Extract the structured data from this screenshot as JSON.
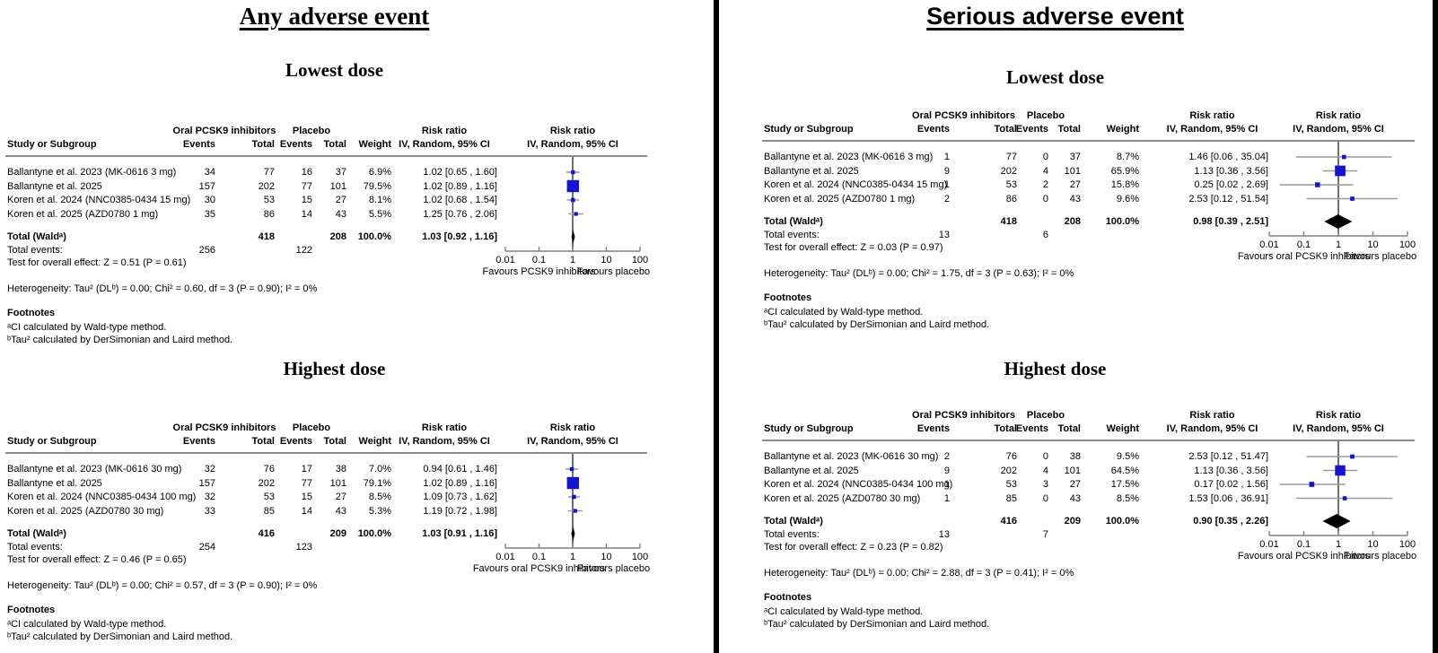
{
  "figures": {
    "left": {
      "title": "Any adverse event"
    },
    "right": {
      "title": "Serious adverse event"
    }
  },
  "headers": {
    "study": "Study or Subgroup",
    "group_treatment": "Oral PCSK9 inhibitors",
    "group_placebo": "Placebo",
    "events": "Events",
    "total": "Total",
    "weight": "Weight",
    "risk_ratio": "Risk ratio",
    "method": "IV, Random, 95% CI"
  },
  "footnotes": {
    "title": "Footnotes",
    "a": "ᵃCI calculated by Wald-type method.",
    "b": "ᵇTau² calculated by DerSimonian and Laird method."
  },
  "colors": {
    "marker_square": "#1414cc",
    "diamond": "#000000",
    "ci_line": "#9a9a9a",
    "axis": "#808080",
    "vline": "#333333",
    "rule": "#8c8c8c",
    "divider": "#000000"
  },
  "chart_data": [
    {
      "type": "scatter",
      "subtype": "forest_plot",
      "figure": "Any adverse event",
      "title": "Lowest dose",
      "x_scale": "log",
      "xlim": [
        0.01,
        100
      ],
      "x_ticks": [
        0.01,
        0.1,
        1,
        10,
        100
      ],
      "favours_left": "Favours PCSK9 inhibitors",
      "favours_right": "Favours placebo",
      "rows": [
        {
          "study": "Ballantyne et al. 2023 (MK-0616 3 mg)",
          "pcsk9_events": "34",
          "pcsk9_total": "77",
          "placebo_events": "16",
          "placebo_total": "37",
          "weight": "6.9%",
          "weight_pct": 6.9,
          "ci_text": "1.02 [0.65 , 1.60]",
          "rr": 1.02,
          "ci_low": 0.65,
          "ci_high": 1.6
        },
        {
          "study": "Ballantyne et al. 2025",
          "pcsk9_events": "157",
          "pcsk9_total": "202",
          "placebo_events": "77",
          "placebo_total": "101",
          "weight": "79.5%",
          "weight_pct": 79.5,
          "ci_text": "1.02 [0.89 , 1.16]",
          "rr": 1.02,
          "ci_low": 0.89,
          "ci_high": 1.16
        },
        {
          "study": "Koren et al. 2024 (NNC0385-0434 15 mg)",
          "pcsk9_events": "30",
          "pcsk9_total": "53",
          "placebo_events": "15",
          "placebo_total": "27",
          "weight": "8.1%",
          "weight_pct": 8.1,
          "ci_text": "1.02 [0.68 , 1.54]",
          "rr": 1.02,
          "ci_low": 0.68,
          "ci_high": 1.54
        },
        {
          "study": "Koren et al. 2025 (AZD0780 1 mg)",
          "pcsk9_events": "35",
          "pcsk9_total": "86",
          "placebo_events": "14",
          "placebo_total": "43",
          "weight": "5.5%",
          "weight_pct": 5.5,
          "ci_text": "1.25 [0.76 , 2.06]",
          "rr": 1.25,
          "ci_low": 0.76,
          "ci_high": 2.06
        }
      ],
      "total": {
        "label": "Total (Waldᵃ)",
        "pcsk9_total": "418",
        "placebo_total": "208",
        "weight": "100.0%",
        "ci_text": "1.03 [0.92 , 1.16]",
        "rr": 1.03,
        "ci_low": 0.92,
        "ci_high": 1.16
      },
      "total_events": {
        "label": "Total events:",
        "pcsk9": "256",
        "placebo": "122"
      },
      "overall_test": "Test for overall effect: Z = 0.51 (P = 0.61)",
      "heterogeneity": "Heterogeneity: Tau² (DLᵇ) = 0.00; Chi² = 0.60, df = 3 (P = 0.90); I² = 0%"
    },
    {
      "type": "scatter",
      "subtype": "forest_plot",
      "figure": "Any adverse event",
      "title": "Highest dose",
      "x_scale": "log",
      "xlim": [
        0.01,
        100
      ],
      "x_ticks": [
        0.01,
        0.1,
        1,
        10,
        100
      ],
      "favours_left": "Favours oral PCSK9 inhibitors",
      "favours_right": "Favours placebo",
      "rows": [
        {
          "study": "Ballantyne et al. 2023 (MK-0616 30 mg)",
          "pcsk9_events": "32",
          "pcsk9_total": "76",
          "placebo_events": "17",
          "placebo_total": "38",
          "weight": "7.0%",
          "weight_pct": 7.0,
          "ci_text": "0.94 [0.61 , 1.46]",
          "rr": 0.94,
          "ci_low": 0.61,
          "ci_high": 1.46
        },
        {
          "study": "Ballantyne et al. 2025",
          "pcsk9_events": "157",
          "pcsk9_total": "202",
          "placebo_events": "77",
          "placebo_total": "101",
          "weight": "79.1%",
          "weight_pct": 79.1,
          "ci_text": "1.02 [0.89 , 1.16]",
          "rr": 1.02,
          "ci_low": 0.89,
          "ci_high": 1.16
        },
        {
          "study": "Koren et al. 2024 (NNC0385-0434 100 mg)",
          "pcsk9_events": "32",
          "pcsk9_total": "53",
          "placebo_events": "15",
          "placebo_total": "27",
          "weight": "8.5%",
          "weight_pct": 8.5,
          "ci_text": "1.09 [0.73 , 1.62]",
          "rr": 1.09,
          "ci_low": 0.73,
          "ci_high": 1.62
        },
        {
          "study": "Koren et al. 2025 (AZD0780 30 mg)",
          "pcsk9_events": "33",
          "pcsk9_total": "85",
          "placebo_events": "14",
          "placebo_total": "43",
          "weight": "5.3%",
          "weight_pct": 5.3,
          "ci_text": "1.19 [0.72 , 1.98]",
          "rr": 1.19,
          "ci_low": 0.72,
          "ci_high": 1.98
        }
      ],
      "total": {
        "label": "Total (Waldᵃ)",
        "pcsk9_total": "416",
        "placebo_total": "209",
        "weight": "100.0%",
        "ci_text": "1.03 [0.91 , 1.16]",
        "rr": 1.03,
        "ci_low": 0.91,
        "ci_high": 1.16
      },
      "total_events": {
        "label": "Total events:",
        "pcsk9": "254",
        "placebo": "123"
      },
      "overall_test": "Test for overall effect: Z = 0.46 (P = 0.65)",
      "heterogeneity": "Heterogeneity: Tau² (DLᵇ) = 0.00; Chi² = 0.57, df = 3 (P = 0.90); I² = 0%"
    },
    {
      "type": "scatter",
      "subtype": "forest_plot",
      "figure": "Serious adverse event",
      "title": "Lowest dose",
      "x_scale": "log",
      "xlim": [
        0.01,
        100
      ],
      "x_ticks": [
        0.01,
        0.1,
        1,
        10,
        100
      ],
      "favours_left": "Favours oral PCSK9 inhibitors",
      "favours_right": "Favours placebo",
      "rows": [
        {
          "study": "Ballantyne et al. 2023 (MK-0616 3 mg)",
          "pcsk9_events": "1",
          "pcsk9_total": "77",
          "placebo_events": "0",
          "placebo_total": "37",
          "weight": "8.7%",
          "weight_pct": 8.7,
          "ci_text": "1.46 [0.06 , 35.04]",
          "rr": 1.46,
          "ci_low": 0.06,
          "ci_high": 35.04
        },
        {
          "study": "Ballantyne et al. 2025",
          "pcsk9_events": "9",
          "pcsk9_total": "202",
          "placebo_events": "4",
          "placebo_total": "101",
          "weight": "65.9%",
          "weight_pct": 65.9,
          "ci_text": "1.13 [0.36 , 3.56]",
          "rr": 1.13,
          "ci_low": 0.36,
          "ci_high": 3.56
        },
        {
          "study": "Koren et al. 2024 (NNC0385-0434 15 mg)",
          "pcsk9_events": "1",
          "pcsk9_total": "53",
          "placebo_events": "2",
          "placebo_total": "27",
          "weight": "15.8%",
          "weight_pct": 15.8,
          "ci_text": "0.25 [0.02 , 2.69]",
          "rr": 0.25,
          "ci_low": 0.02,
          "ci_high": 2.69
        },
        {
          "study": "Koren et al. 2025 (AZD0780 1 mg)",
          "pcsk9_events": "2",
          "pcsk9_total": "86",
          "placebo_events": "0",
          "placebo_total": "43",
          "weight": "9.6%",
          "weight_pct": 9.6,
          "ci_text": "2.53 [0.12 , 51.54]",
          "rr": 2.53,
          "ci_low": 0.12,
          "ci_high": 51.54
        }
      ],
      "total": {
        "label": "Total (Waldᵃ)",
        "pcsk9_total": "418",
        "placebo_total": "208",
        "weight": "100.0%",
        "ci_text": "0.98 [0.39 , 2.51]",
        "rr": 0.98,
        "ci_low": 0.39,
        "ci_high": 2.51
      },
      "total_events": {
        "label": "Total events:",
        "pcsk9": "13",
        "placebo": "6"
      },
      "overall_test": "Test for overall effect: Z = 0.03 (P = 0.97)",
      "heterogeneity": "Heterogeneity: Tau² (DLᵇ) = 0.00; Chi² = 1.75, df = 3 (P = 0.63); I² = 0%"
    },
    {
      "type": "scatter",
      "subtype": "forest_plot",
      "figure": "Serious adverse event",
      "title": "Highest dose",
      "x_scale": "log",
      "xlim": [
        0.01,
        100
      ],
      "x_ticks": [
        0.01,
        0.1,
        1,
        10,
        100
      ],
      "favours_left": "Favours oral PCSK9 inhibitors",
      "favours_right": "Favours placebo",
      "rows": [
        {
          "study": "Ballantyne et al. 2023 (MK-0616 30 mg)",
          "pcsk9_events": "2",
          "pcsk9_total": "76",
          "placebo_events": "0",
          "placebo_total": "38",
          "weight": "9.5%",
          "weight_pct": 9.5,
          "ci_text": "2.53 [0.12 , 51.47]",
          "rr": 2.53,
          "ci_low": 0.12,
          "ci_high": 51.47
        },
        {
          "study": "Ballantyne et al. 2025",
          "pcsk9_events": "9",
          "pcsk9_total": "202",
          "placebo_events": "4",
          "placebo_total": "101",
          "weight": "64.5%",
          "weight_pct": 64.5,
          "ci_text": "1.13 [0.36 , 3.56]",
          "rr": 1.13,
          "ci_low": 0.36,
          "ci_high": 3.56
        },
        {
          "study": "Koren et al. 2024 (NNC0385-0434 100 mg)",
          "pcsk9_events": "1",
          "pcsk9_total": "53",
          "placebo_events": "3",
          "placebo_total": "27",
          "weight": "17.5%",
          "weight_pct": 17.5,
          "ci_text": "0.17 [0.02 , 1.56]",
          "rr": 0.17,
          "ci_low": 0.02,
          "ci_high": 1.56
        },
        {
          "study": "Koren et al. 2025 (AZD0780 30 mg)",
          "pcsk9_events": "1",
          "pcsk9_total": "85",
          "placebo_events": "0",
          "placebo_total": "43",
          "weight": "8.5%",
          "weight_pct": 8.5,
          "ci_text": "1.53 [0.06 , 36.91]",
          "rr": 1.53,
          "ci_low": 0.06,
          "ci_high": 36.91
        }
      ],
      "total": {
        "label": "Total (Waldᵃ)",
        "pcsk9_total": "416",
        "placebo_total": "209",
        "weight": "100.0%",
        "ci_text": "0.90 [0.35 , 2.26]",
        "rr": 0.9,
        "ci_low": 0.35,
        "ci_high": 2.26
      },
      "total_events": {
        "label": "Total events:",
        "pcsk9": "13",
        "placebo": "7"
      },
      "overall_test": "Test for overall effect: Z = 0.23 (P = 0.82)",
      "heterogeneity": "Heterogeneity: Tau² (DLᵇ) = 0.00; Chi² = 2.88, df = 3 (P = 0.41); I² = 0%"
    }
  ]
}
